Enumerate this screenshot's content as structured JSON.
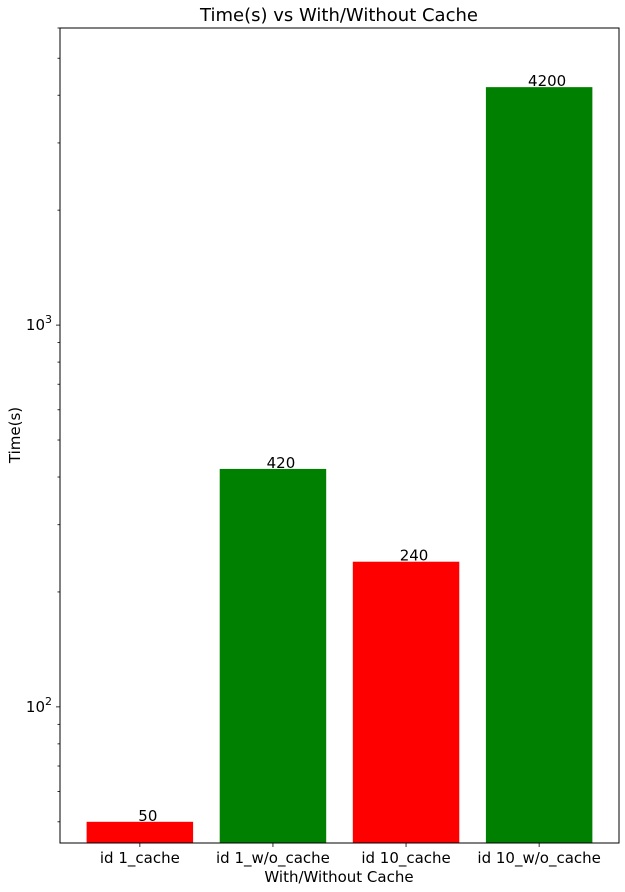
{
  "chart_data": {
    "type": "bar",
    "title": "Time(s) vs With/Without Cache",
    "xlabel": "With/Without Cache",
    "ylabel": "Time(s)",
    "yscale": "log",
    "ylim": [
      44,
      6000
    ],
    "categories": [
      "id 1_cache",
      "id 1_w/o_cache",
      "id 10_cache",
      "id 10_w/o_cache"
    ],
    "values": [
      50,
      420,
      240,
      4200
    ],
    "data_labels": [
      "50",
      "420",
      "240",
      "4200"
    ],
    "colors": [
      "#ff0000",
      "#008000",
      "#ff0000",
      "#008000"
    ],
    "y_major_ticks": [
      {
        "value": 100,
        "base": "10",
        "exp": "2"
      },
      {
        "value": 1000,
        "base": "10",
        "exp": "3"
      }
    ],
    "grid": false,
    "legend": "none"
  }
}
